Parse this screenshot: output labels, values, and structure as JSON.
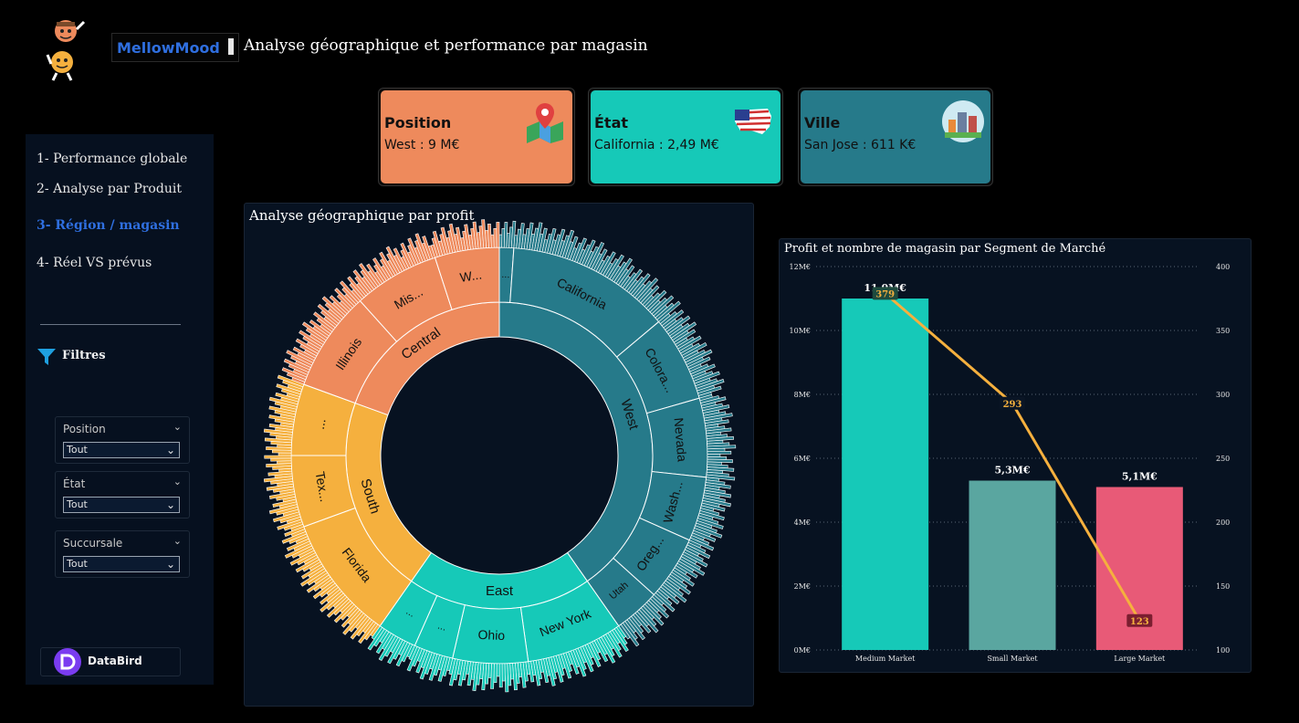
{
  "header": {
    "brand": "MellowMood",
    "title": "Analyse géographique et performance par magasin"
  },
  "kpis": [
    {
      "title": "Position",
      "value": "West : 9 M€",
      "color": "#ee8a5c",
      "icon": "map-pin-icon"
    },
    {
      "title": "État",
      "value": "California : 2,49 M€",
      "color": "#16c9b8",
      "icon": "usa-flag-map-icon"
    },
    {
      "title": "Ville",
      "value": "San Jose : 611 K€",
      "color": "#267a8a",
      "icon": "city-icon"
    }
  ],
  "sidebar": {
    "nav": [
      {
        "label": "1- Performance globale",
        "active": false
      },
      {
        "label": "2- Analyse par Produit",
        "active": false
      },
      {
        "label": "3- Région / magasin",
        "active": true
      },
      {
        "label": "4- Réel VS prévus",
        "active": false
      }
    ],
    "filters_label": "Filtres",
    "slicers": [
      {
        "label": "Position",
        "value": "Tout"
      },
      {
        "label": "État",
        "value": "Tout"
      },
      {
        "label": "Succursale",
        "value": "Tout"
      }
    ],
    "footer_brand": "DataBird"
  },
  "sunburst": {
    "title": "Analyse géographique par profit",
    "colors": {
      "West": "#267a8a",
      "East": "#16c9b8",
      "South": "#f5b03e",
      "Central": "#ee8a5c"
    },
    "regions": [
      {
        "label": "West",
        "states": [
          "...",
          "California",
          "Colora...",
          "Nevada",
          "Wash...",
          "Oreg...",
          "Utah"
        ]
      },
      {
        "label": "East",
        "states": [
          "New York",
          "Ohio",
          "...",
          "..."
        ]
      },
      {
        "label": "South",
        "states": [
          "Florida",
          "Tex...",
          "..."
        ]
      },
      {
        "label": "Central",
        "states": [
          "Illinois",
          "Mis...",
          "W..."
        ]
      }
    ]
  },
  "chart_data": {
    "type": "bar",
    "title": "Profit et nombre de magasin par Segment de Marché",
    "categories": [
      "Medium Market",
      "Small Market",
      "Large Market"
    ],
    "series": [
      {
        "type": "bar",
        "values": [
          11.0,
          5.3,
          5.1
        ],
        "labels": [
          "11,0M€",
          "5,3M€",
          "5,1M€"
        ],
        "colors": [
          "#16c9b8",
          "#5aa6a0",
          "#e85a77"
        ]
      },
      {
        "type": "line",
        "axis": "right",
        "values": [
          379,
          293,
          123
        ],
        "color": "#f5b03e"
      }
    ],
    "y_left": {
      "min": 0,
      "max": 12,
      "ticks": [
        "0M€",
        "2M€",
        "4M€",
        "6M€",
        "8M€",
        "10M€",
        "12M€"
      ]
    },
    "y_right": {
      "min": 100,
      "max": 400,
      "ticks": [
        "100",
        "150",
        "200",
        "250",
        "300",
        "350",
        "400"
      ]
    },
    "grid": true
  }
}
